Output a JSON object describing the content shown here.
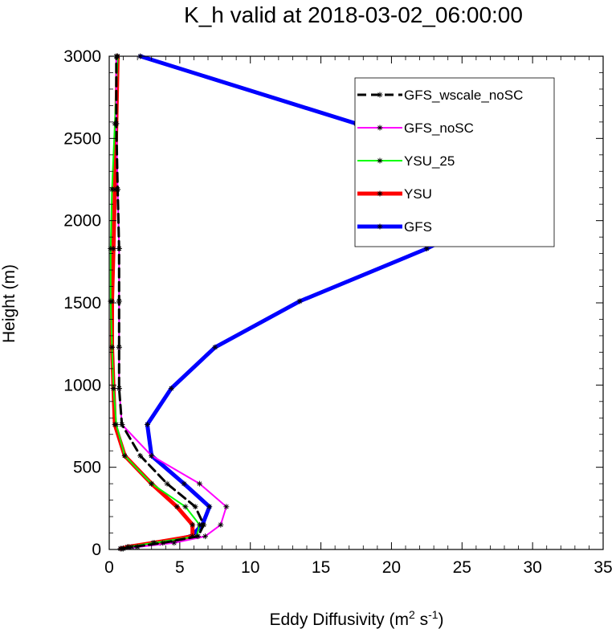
{
  "chart_data": {
    "type": "line",
    "title": "K_h valid at 2018-03-02_06:00:00",
    "xlabel": "Eddy Diffusivity (m",
    "xlabel_sup1": "2",
    "xlabel_mid": " s",
    "xlabel_sup2": "-1",
    "xlabel_end": ")",
    "ylabel": "Height (m)",
    "xlim": [
      0,
      35
    ],
    "ylim": [
      0,
      3000
    ],
    "xticks": [
      0,
      5,
      10,
      15,
      20,
      25,
      30,
      35
    ],
    "yticks": [
      0,
      500,
      1000,
      1500,
      2000,
      2500,
      3000
    ],
    "xtick_labels": [
      "0",
      "5",
      "10",
      "15",
      "20",
      "25",
      "30",
      "35"
    ],
    "ytick_labels": [
      "0",
      "500",
      "1000",
      "1500",
      "2000",
      "2500",
      "3000"
    ],
    "legend_position": "top-right",
    "series": [
      {
        "name": "GFS_wscale_noSC",
        "color": "#000000",
        "width": 3,
        "dashed": true,
        "points": [
          [
            0.9,
            5
          ],
          [
            1.6,
            15
          ],
          [
            3.8,
            40
          ],
          [
            6.3,
            80
          ],
          [
            6.7,
            150
          ],
          [
            6.1,
            260
          ],
          [
            4.1,
            400
          ],
          [
            2.2,
            570
          ],
          [
            0.9,
            760
          ],
          [
            0.7,
            980
          ],
          [
            0.7,
            1230
          ],
          [
            0.7,
            1510
          ],
          [
            0.7,
            1830
          ],
          [
            0.6,
            2190
          ],
          [
            0.5,
            2590
          ],
          [
            0.5,
            3000
          ]
        ]
      },
      {
        "name": "GFS_noSC",
        "color": "#ff00ff",
        "width": 2,
        "dashed": false,
        "points": [
          [
            1.0,
            5
          ],
          [
            2.0,
            15
          ],
          [
            4.6,
            40
          ],
          [
            6.8,
            80
          ],
          [
            7.9,
            150
          ],
          [
            8.3,
            260
          ],
          [
            6.4,
            400
          ],
          [
            3.0,
            570
          ],
          [
            0.9,
            760
          ],
          [
            0.7,
            980
          ],
          [
            0.7,
            1230
          ],
          [
            0.7,
            1510
          ],
          [
            0.7,
            1830
          ],
          [
            0.6,
            2190
          ],
          [
            0.5,
            2590
          ],
          [
            0.5,
            3000
          ]
        ]
      },
      {
        "name": "YSU_25",
        "color": "#00ff00",
        "width": 2,
        "dashed": false,
        "points": [
          [
            0.8,
            5
          ],
          [
            1.3,
            15
          ],
          [
            3.2,
            40
          ],
          [
            6.2,
            80
          ],
          [
            6.4,
            150
          ],
          [
            5.4,
            260
          ],
          [
            3.0,
            400
          ],
          [
            1.1,
            570
          ],
          [
            0.5,
            760
          ],
          [
            0.3,
            980
          ],
          [
            0.2,
            1230
          ],
          [
            0.1,
            1510
          ],
          [
            0.1,
            1830
          ],
          [
            0.2,
            2190
          ],
          [
            0.4,
            2590
          ],
          [
            0.6,
            3000
          ]
        ]
      },
      {
        "name": "YSU",
        "color": "#ff0000",
        "width": 5,
        "dashed": false,
        "points": [
          [
            0.8,
            5
          ],
          [
            1.3,
            15
          ],
          [
            3.1,
            40
          ],
          [
            5.9,
            80
          ],
          [
            5.9,
            150
          ],
          [
            4.8,
            260
          ],
          [
            3.0,
            400
          ],
          [
            1.1,
            570
          ],
          [
            0.4,
            760
          ],
          [
            0.3,
            980
          ],
          [
            0.2,
            1230
          ],
          [
            0.2,
            1510
          ],
          [
            0.3,
            1830
          ],
          [
            0.4,
            2190
          ],
          [
            0.5,
            2590
          ],
          [
            0.6,
            3000
          ]
        ]
      },
      {
        "name": "GFS",
        "color": "#0000ff",
        "width": 5,
        "dashed": false,
        "points": [
          [
            0.8,
            5
          ],
          [
            1.4,
            15
          ],
          [
            3.6,
            40
          ],
          [
            5.8,
            80
          ],
          [
            6.6,
            150
          ],
          [
            7.1,
            260
          ],
          [
            5.3,
            400
          ],
          [
            3.0,
            570
          ],
          [
            2.7,
            760
          ],
          [
            4.4,
            980
          ],
          [
            7.5,
            1230
          ],
          [
            13.5,
            1510
          ],
          [
            22.5,
            1830
          ],
          [
            30.8,
            2190
          ],
          [
            17.5,
            2590
          ],
          [
            2.2,
            3000
          ]
        ]
      }
    ]
  }
}
